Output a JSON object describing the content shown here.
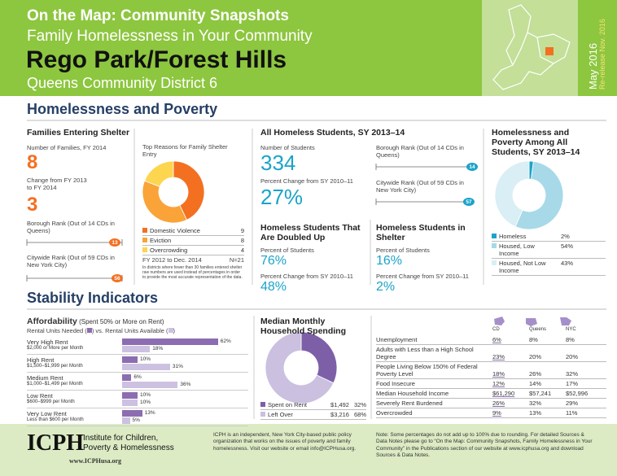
{
  "header": {
    "title": "On the Map: Community Snapshots",
    "subtitle": "Family Homelessness in Your Community",
    "community": "Rego Park/Forest Hills",
    "district": "Queens Community District 6",
    "date": "May 2016",
    "rerelease": "Re-release Nov. 2016"
  },
  "homelessness": {
    "title": "Homelessness and Poverty",
    "shelter": {
      "title": "Families Entering Shelter",
      "families_label": "Number of Families, FY 2014",
      "families": 8,
      "change_label": "Change from FY 2013 to FY 2014",
      "change": 3,
      "borough_rank_label": "Borough Rank (Out of 14 CDs in Queens)",
      "borough_rank": 13,
      "borough_total": 14,
      "citywide_rank_label": "Citywide Rank (Out of 59 CDs in New York City)",
      "citywide_rank": 56,
      "citywide_total": 59
    },
    "reasons": {
      "title": "Top Reasons for Family Shelter Entry",
      "items": [
        {
          "name": "Domestic Violence",
          "value": 9,
          "color": "#f37021"
        },
        {
          "name": "Eviction",
          "value": 8,
          "color": "#f9a339"
        },
        {
          "name": "Overcrowding",
          "value": 4,
          "color": "#fdd54f"
        }
      ],
      "period": "FY 2012 to Dec. 2014",
      "n": "N=21",
      "note": "In districts where fewer than 30 families entered shelter raw numbers are used instead of percentages in order to provide the most accurate representation of the data."
    },
    "students": {
      "title": "All Homeless Students, SY 2013–14",
      "count_label": "Number of Students",
      "count": 334,
      "change_label": "Percent Change from SY 2010–11",
      "change": "27%",
      "borough_rank_label": "Borough Rank (Out of 14 CDs in Queens)",
      "borough_rank": 14,
      "borough_total": 14,
      "citywide_rank_label": "Citywide Rank (Out of 59 CDs in New York City)",
      "citywide_rank": 57,
      "citywide_total": 59
    },
    "doubled_up": {
      "title": "Homeless Students That Are Doubled Up",
      "pct_label": "Percent of Students",
      "pct": "76%",
      "change_label": "Percent Change from SY 2010–11",
      "change": "48%"
    },
    "in_shelter": {
      "title": "Homeless Students in Shelter",
      "pct_label": "Percent of Students",
      "pct": "16%",
      "change_label": "Percent Change from SY 2010–11",
      "change": "2%"
    },
    "poverty": {
      "title": "Homelessness and Poverty Among All Students, SY 2013–14",
      "items": [
        {
          "name": "Homeless",
          "value": 2,
          "value_label": "2%",
          "color": "#1ba3c9"
        },
        {
          "name": "Housed, Low Income",
          "value": 54,
          "value_label": "54%",
          "color": "#a7d9e8"
        },
        {
          "name": "Housed, Not Low Income",
          "value": 43,
          "value_label": "43%",
          "color": "#d9eef5"
        }
      ]
    }
  },
  "stability": {
    "title": "Stability Indicators",
    "affordability": {
      "title": "Affordability",
      "title_note": "(Spent 50% or More on Rent)",
      "legend_needed": "Rental Units Needed",
      "legend_vs": "vs.",
      "legend_available": "Rental Units Available",
      "needed_color": "#8c6db1",
      "available_color": "#cdc1e2",
      "rows": [
        {
          "name": "Very High Rent",
          "range": "$2,000 or More per Month",
          "needed": 62,
          "needed_label": "62%",
          "available": 18,
          "available_label": "18%"
        },
        {
          "name": "High Rent",
          "range": "$1,500–$1,999 per Month",
          "needed": 10,
          "needed_label": "10%",
          "available": 31,
          "available_label": "31%"
        },
        {
          "name": "Medium Rent",
          "range": "$1,000–$1,499 per Month",
          "needed": 6,
          "needed_label": "6%",
          "available": 36,
          "available_label": "36%"
        },
        {
          "name": "Low Rent",
          "range": "$600–$999 per Month",
          "needed": 10,
          "needed_label": "10%",
          "available": 10,
          "available_label": "10%"
        },
        {
          "name": "Very Low Rent",
          "range": "Less than $600 per Month",
          "needed": 13,
          "needed_label": "13%",
          "available": 5,
          "available_label": "5%"
        }
      ]
    },
    "spending": {
      "title": "Median Monthly Household Spending",
      "items": [
        {
          "name": "Spent on Rent",
          "amount": "$1,492",
          "value": 32,
          "value_label": "32%",
          "color": "#7d5fa8"
        },
        {
          "name": "Left Over",
          "amount": "$3,216",
          "value": 68,
          "value_label": "68%",
          "color": "#cbc0e0"
        }
      ]
    },
    "indicators": {
      "columns": [
        "CD",
        "Queens",
        "NYC"
      ],
      "rows": [
        [
          "Unemployment",
          "6%",
          "8%",
          "8%"
        ],
        [
          "Adults with Less than a High School Degree",
          "23%",
          "20%",
          "20%"
        ],
        [
          "People Living Below 150% of Federal Poverty Level",
          "18%",
          "26%",
          "32%"
        ],
        [
          "Food Insecure",
          "12%",
          "14%",
          "17%"
        ],
        [
          "Median Household Income",
          "$61,290",
          "$57,241",
          "$52,996"
        ],
        [
          "Severely Rent Burdened",
          "26%",
          "32%",
          "29%"
        ],
        [
          "Overcrowded",
          "9%",
          "13%",
          "11%"
        ]
      ]
    }
  },
  "footer": {
    "logo": "ICPH",
    "org_name": "Institute for Children, Poverty & Homelessness",
    "url": "www.ICPHusa.org",
    "about": "ICPH is an independent, New York City-based public policy organization that works on the issues of poverty and family homelessness. Visit our website or email info@ICPHusa.org.",
    "note": "Note: Some percentages do not add up to 100% due to rounding. For detailed Sources & Data Notes please go to “On the Map: Community Snapshots, Family Homelessness in Your Community” in the Publications section of our website at www.icphusa.org and download Sources & Data Notes."
  }
}
